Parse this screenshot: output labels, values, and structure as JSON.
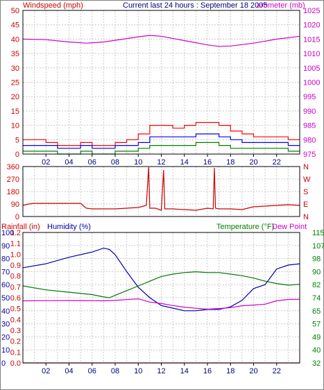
{
  "header": {
    "wind_label": "Windspeed (mph)",
    "title": "Current last 24 hours : September 18 2005",
    "baro_label": "arometer (mb)"
  },
  "lower": {
    "rain_label": "Rainfall (in)",
    "hum_label": "Humidity (%)",
    "temp_label": "Temperature (°F)",
    "dew_label": "Dew Point"
  },
  "colors": {
    "wind_gust": "#ff0000",
    "wind_avg": "#0000ff",
    "wind_low": "#008000",
    "barometer": "#cc00cc",
    "direction": "#cc0000",
    "humidity": "#0000aa",
    "temperature": "#007700",
    "dewpoint": "#cc00cc",
    "rainfall": "#cc0000",
    "axis_red": "#cc0000",
    "axis_blue": "#0000aa",
    "axis_green": "#008000",
    "grid": "#c8c8c8"
  },
  "chart_data": [
    {
      "type": "line",
      "name": "wind-barometer",
      "x_ticks": [
        "02",
        "04",
        "06",
        "08",
        "10",
        "12",
        "14",
        "16",
        "18",
        "20",
        "22"
      ],
      "x_hours": [
        0,
        24
      ],
      "left_axis": {
        "label": "Windspeed (mph)",
        "ticks": [
          0,
          5,
          10,
          15,
          20,
          25,
          30,
          35,
          40,
          45,
          50
        ],
        "ylim": [
          0,
          50
        ]
      },
      "right_axis": {
        "label": "arometer (mb)",
        "ticks": [
          975,
          980,
          985,
          990,
          995,
          1000,
          1005,
          1010,
          1015,
          1020,
          1025
        ],
        "ylim": [
          975,
          1025
        ]
      },
      "series": [
        {
          "x": [
            0,
            1,
            2,
            3,
            4,
            5,
            6,
            7,
            8,
            9,
            10,
            11,
            12,
            13,
            14,
            15,
            16,
            17,
            18,
            19,
            20,
            21,
            22,
            23,
            24
          ],
          "values": [
            5,
            5,
            4,
            3,
            3,
            4,
            3,
            3,
            4,
            5,
            7,
            10,
            10,
            9,
            10,
            11,
            11,
            10,
            8,
            7,
            6,
            6,
            6,
            5,
            5
          ]
        },
        {
          "x": [
            0,
            1,
            2,
            3,
            4,
            5,
            6,
            7,
            8,
            9,
            10,
            11,
            12,
            13,
            14,
            15,
            16,
            17,
            18,
            19,
            20,
            21,
            22,
            23,
            24
          ],
          "values": [
            3,
            3,
            3,
            2,
            2,
            3,
            2,
            2,
            3,
            3,
            4,
            6,
            6,
            6,
            6,
            7,
            7,
            6,
            5,
            4,
            4,
            4,
            4,
            3,
            3
          ]
        },
        {
          "x": [
            0,
            1,
            2,
            3,
            4,
            5,
            6,
            7,
            8,
            9,
            10,
            11,
            12,
            13,
            14,
            15,
            16,
            17,
            18,
            19,
            20,
            21,
            22,
            23,
            24
          ],
          "values": [
            1,
            1,
            1,
            0,
            0,
            1,
            0,
            0,
            1,
            1,
            2,
            3,
            3,
            3,
            3,
            4,
            4,
            3,
            2,
            2,
            2,
            2,
            2,
            1,
            1
          ]
        },
        {
          "x": [
            0,
            2,
            4,
            5.5,
            7,
            9,
            10,
            11,
            12,
            14,
            16,
            17,
            18,
            20,
            22,
            24
          ],
          "values": [
            1015,
            1014.8,
            1014,
            1013.6,
            1014,
            1015.2,
            1015.8,
            1016.3,
            1016,
            1014.5,
            1013,
            1012.5,
            1012.6,
            1013.6,
            1015,
            1016
          ]
        }
      ]
    },
    {
      "type": "line",
      "name": "wind-direction",
      "right_axis": {
        "ticks": [
          "N",
          "W",
          "S",
          "E",
          "N"
        ]
      },
      "left_axis": {
        "ticks": [
          360,
          270,
          180,
          90,
          0
        ],
        "ylim": [
          0,
          360
        ]
      },
      "series": [
        {
          "x": [
            0,
            0.5,
            1,
            2,
            3,
            4,
            5,
            5.5,
            6,
            7,
            8,
            9,
            10,
            10.7,
            10.9,
            11,
            11.5,
            12,
            12.2,
            12.3,
            13,
            14,
            15,
            16,
            16.5,
            16.6,
            16.7,
            17,
            18,
            19,
            20,
            21,
            22,
            23,
            24
          ],
          "values": [
            80,
            90,
            95,
            95,
            95,
            95,
            95,
            60,
            55,
            55,
            55,
            60,
            65,
            80,
            355,
            60,
            60,
            45,
            335,
            55,
            55,
            50,
            45,
            60,
            55,
            350,
            60,
            55,
            55,
            50,
            70,
            75,
            80,
            85,
            80
          ]
        }
      ]
    },
    {
      "type": "line",
      "name": "rain-humidity-temperature-dewpoint",
      "axis_rain": {
        "label": "Rainfall (in)",
        "ticks": [
          0.0,
          0.1,
          0.2,
          0.3,
          0.4,
          0.5,
          0.6,
          0.7,
          0.8,
          0.9,
          1.0,
          1.1,
          1.2
        ]
      },
      "axis_humidity": {
        "label": "Humidity (%)",
        "ticks": [
          0,
          10,
          20,
          30,
          40,
          50,
          60,
          70,
          80,
          90,
          100
        ]
      },
      "axis_temperature": {
        "label": "Temperature (°F)",
        "ticks": [
          32,
          40,
          49,
          57,
          65,
          74,
          82,
          90,
          98,
          107,
          115
        ],
        "ylim": [
          32,
          115
        ]
      },
      "series": [
        {
          "x": [
            0,
            2,
            4,
            6,
            7,
            7.5,
            8,
            9,
            10,
            11,
            12,
            13,
            14,
            15,
            16,
            17,
            18,
            19,
            20,
            21,
            22,
            23,
            24
          ],
          "values": [
            73,
            76,
            81,
            85,
            88,
            87,
            83,
            70,
            58,
            50,
            44,
            42,
            40,
            40,
            41,
            41,
            43,
            48,
            57,
            60,
            72,
            75,
            76
          ]
        },
        {
          "x": [
            0,
            2,
            4,
            6,
            7,
            7.5,
            8,
            9,
            10,
            11,
            12,
            13,
            14,
            15,
            16,
            17,
            18,
            19,
            20,
            21,
            22,
            23,
            24
          ],
          "values": [
            81,
            78.5,
            77,
            75.5,
            74,
            73.5,
            75,
            78,
            81,
            84,
            87,
            88.5,
            89.5,
            90,
            89.5,
            89.5,
            88.5,
            87.5,
            86,
            84,
            82.5,
            81.5,
            82
          ]
        },
        {
          "x": [
            0,
            2,
            4,
            6,
            7,
            8,
            9,
            10,
            11,
            12,
            13,
            14,
            15,
            16,
            17,
            18,
            19,
            20,
            21,
            22,
            23,
            24
          ],
          "values": [
            71.5,
            71.6,
            71.7,
            71.6,
            71.5,
            71.8,
            72.3,
            72.8,
            70.7,
            69.8,
            68.5,
            67.5,
            66.8,
            66.2,
            66.6,
            67.2,
            68.4,
            68.8,
            69.4,
            71.5,
            72.4,
            72.5
          ]
        },
        {
          "x": [
            0,
            24
          ],
          "values": [
            0,
            0
          ]
        }
      ]
    }
  ]
}
